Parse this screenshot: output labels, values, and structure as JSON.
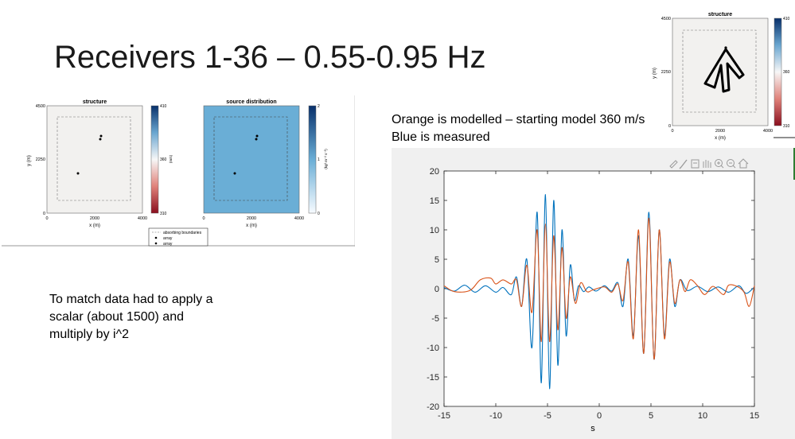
{
  "slide": {
    "title": "Receivers 1-36 – 0.55-0.95 Hz",
    "note_line1": "Orange is modelled – starting model 360 m/s",
    "note_line2": "Blue is measured",
    "left_note_lines": [
      "To match data had to apply a",
      "scalar (about 1500) and",
      "multiply by i^2"
    ]
  },
  "left_figure": {
    "structure": {
      "title": "structure",
      "ylabel": "y (m)",
      "xlabel": "x (m)",
      "yticks": [
        "4500",
        "2250",
        "0"
      ],
      "xticks": [
        "0",
        "2000",
        "4000"
      ],
      "colorbar_ticks": [
        "410",
        "360",
        "310"
      ],
      "colorbar_label": "(m/s)"
    },
    "source": {
      "title": "source distribution",
      "xlabel": "x (m)",
      "xticks": [
        "0",
        "2000",
        "4000"
      ],
      "colorbar_ticks": [
        "2",
        "1",
        "0"
      ],
      "colorbar_label": "(kg² m⁻² s⁻²)"
    },
    "legend": [
      "absorbing boundaries",
      "array",
      "array"
    ],
    "colors": {
      "background_field": "#f2f1ef",
      "source_fill": "#6aaed6"
    }
  },
  "right_figure": {
    "title": "structure",
    "ylabel": "y (m)",
    "xlabel": "x (m)",
    "yticks": [
      "4500",
      "2250",
      "0"
    ],
    "xticks": [
      "0",
      "2000",
      "4000"
    ],
    "colorbar_ticks": [
      "410",
      "360",
      "310"
    ]
  },
  "toolbar": {
    "icons": [
      "pencil-icon",
      "brush-icon",
      "export-icon",
      "pan-icon",
      "zoom-in-icon",
      "zoom-out-icon",
      "home-icon"
    ]
  },
  "chart_data": {
    "type": "line",
    "xlabel": "s",
    "ylabel": "",
    "xlim": [
      -15,
      15
    ],
    "ylim": [
      -20,
      20
    ],
    "xticks": [
      -15,
      -10,
      -5,
      0,
      5,
      10,
      15
    ],
    "yticks": [
      20,
      15,
      10,
      5,
      0,
      -5,
      -10,
      -15,
      -20
    ],
    "grid": false,
    "series": [
      {
        "color": "#0072bd",
        "points": [
          [
            -15,
            0.2
          ],
          [
            -14,
            -0.4
          ],
          [
            -13,
            0.6
          ],
          [
            -12,
            -0.6
          ],
          [
            -11,
            0.5
          ],
          [
            -10,
            -0.6
          ],
          [
            -9.3,
            0.2
          ],
          [
            -8.5,
            -1.0
          ],
          [
            -8.0,
            2.0
          ],
          [
            -7.5,
            -3.0
          ],
          [
            -7.0,
            5.0
          ],
          [
            -6.5,
            -10.0
          ],
          [
            -6.0,
            13.0
          ],
          [
            -5.6,
            -16.0
          ],
          [
            -5.2,
            16.0
          ],
          [
            -4.8,
            -17.0
          ],
          [
            -4.4,
            15.0
          ],
          [
            -4.0,
            -13.0
          ],
          [
            -3.6,
            10.0
          ],
          [
            -3.2,
            -8.0
          ],
          [
            -2.8,
            4.0
          ],
          [
            -2.4,
            -2.0
          ],
          [
            -2.0,
            0.5
          ],
          [
            -1.5,
            -0.5
          ],
          [
            -1.0,
            0.3
          ],
          [
            -0.3,
            -0.4
          ],
          [
            0.5,
            0.5
          ],
          [
            1.2,
            -0.4
          ],
          [
            1.8,
            1.0
          ],
          [
            2.3,
            -3.0
          ],
          [
            2.8,
            5.0
          ],
          [
            3.3,
            -8.0
          ],
          [
            3.8,
            9.0
          ],
          [
            4.3,
            -11.0
          ],
          [
            4.8,
            13.0
          ],
          [
            5.3,
            -12.0
          ],
          [
            5.8,
            10.0
          ],
          [
            6.3,
            -8.0
          ],
          [
            6.8,
            5.0
          ],
          [
            7.3,
            -3.0
          ],
          [
            7.8,
            1.5
          ],
          [
            8.5,
            -0.3
          ],
          [
            9.5,
            0.4
          ],
          [
            10.5,
            -0.5
          ],
          [
            11.5,
            0.3
          ],
          [
            12.5,
            -0.6
          ],
          [
            13.5,
            0.5
          ],
          [
            14.2,
            -0.8
          ],
          [
            15,
            0.3
          ]
        ]
      },
      {
        "color": "#d95319",
        "points": [
          [
            -15,
            0.5
          ],
          [
            -14,
            -0.5
          ],
          [
            -12.5,
            -0.3
          ],
          [
            -11.5,
            1.5
          ],
          [
            -10.5,
            1.8
          ],
          [
            -10,
            0.8
          ],
          [
            -9.3,
            1.5
          ],
          [
            -8.5,
            0.8
          ],
          [
            -8.0,
            1.5
          ],
          [
            -7.5,
            -3.0
          ],
          [
            -7.0,
            4.0
          ],
          [
            -6.5,
            -4.0
          ],
          [
            -6.0,
            10.0
          ],
          [
            -5.6,
            -9.0
          ],
          [
            -5.2,
            11.0
          ],
          [
            -4.8,
            -9.0
          ],
          [
            -4.4,
            9.0
          ],
          [
            -4.0,
            -7.0
          ],
          [
            -3.6,
            7.0
          ],
          [
            -3.2,
            -5.0
          ],
          [
            -2.8,
            2.0
          ],
          [
            -2.3,
            -2.5
          ],
          [
            -1.8,
            1.0
          ],
          [
            -1.2,
            -0.5
          ],
          [
            -0.6,
            -0.2
          ],
          [
            0.5,
            0.3
          ],
          [
            1.2,
            -0.6
          ],
          [
            1.8,
            0.8
          ],
          [
            2.3,
            -2.0
          ],
          [
            2.8,
            4.5
          ],
          [
            3.3,
            -8.5
          ],
          [
            3.8,
            10.0
          ],
          [
            4.3,
            -11.0
          ],
          [
            4.8,
            12.0
          ],
          [
            5.3,
            -12.0
          ],
          [
            5.8,
            10.0
          ],
          [
            6.3,
            -8.5
          ],
          [
            6.8,
            4.5
          ],
          [
            7.3,
            -2.5
          ],
          [
            7.8,
            1.5
          ],
          [
            8.3,
            -0.5
          ],
          [
            8.8,
            1.5
          ],
          [
            9.5,
            0.5
          ],
          [
            10.2,
            -1.0
          ],
          [
            11.0,
            0.4
          ],
          [
            12.0,
            -1.0
          ],
          [
            12.5,
            0.6
          ],
          [
            13.3,
            0.4
          ],
          [
            14.0,
            -0.6
          ],
          [
            14.5,
            -3.0
          ],
          [
            15,
            0.5
          ]
        ]
      }
    ]
  }
}
